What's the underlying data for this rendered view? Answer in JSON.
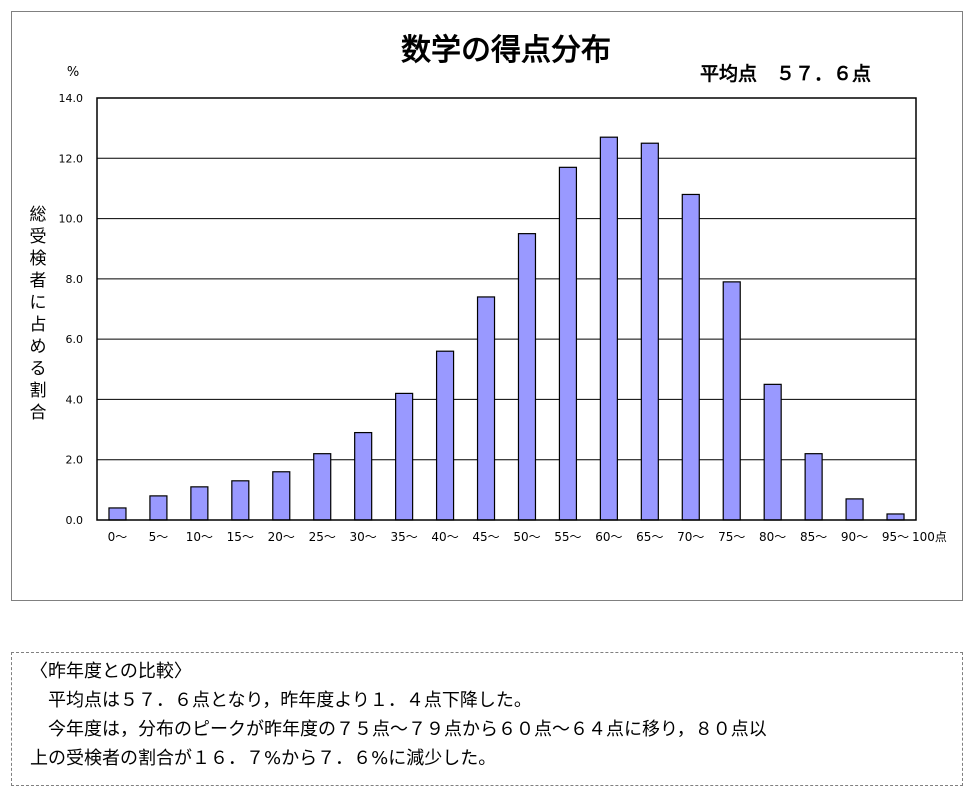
{
  "chart_data": {
    "type": "bar",
    "title": "数学の得点分布",
    "subtitle": "平均点　５７．６点",
    "unit": "%",
    "ylabel": "総受検者に占める割合",
    "xlabel": "",
    "x_end_label": "100点",
    "ylim": [
      0,
      14
    ],
    "yticks": [
      "0.0",
      "2.0",
      "4.0",
      "6.0",
      "8.0",
      "10.0",
      "12.0",
      "14.0"
    ],
    "grid": true,
    "bar_color": "#9999ff",
    "categories": [
      "0～",
      "5～",
      "10～",
      "15～",
      "20～",
      "25～",
      "30～",
      "35～",
      "40～",
      "45～",
      "50～",
      "55～",
      "60～",
      "65～",
      "70～",
      "75～",
      "80～",
      "85～",
      "90～",
      "95～"
    ],
    "values": [
      0.4,
      0.8,
      1.1,
      1.3,
      1.6,
      2.2,
      2.9,
      4.2,
      5.6,
      7.4,
      9.5,
      11.7,
      12.7,
      12.5,
      10.8,
      7.9,
      4.5,
      2.2,
      0.7,
      0.2
    ]
  },
  "note": {
    "heading": "〈昨年度との比較〉",
    "line1": "平均点は５７．６点となり，昨年度より１．４点下降した。",
    "line2": "今年度は，分布のピークが昨年度の７５点～７９点から６０点～６４点に移り，８０点以",
    "line3": "上の受検者の割合が１６．７%から７．６%に減少した。"
  }
}
